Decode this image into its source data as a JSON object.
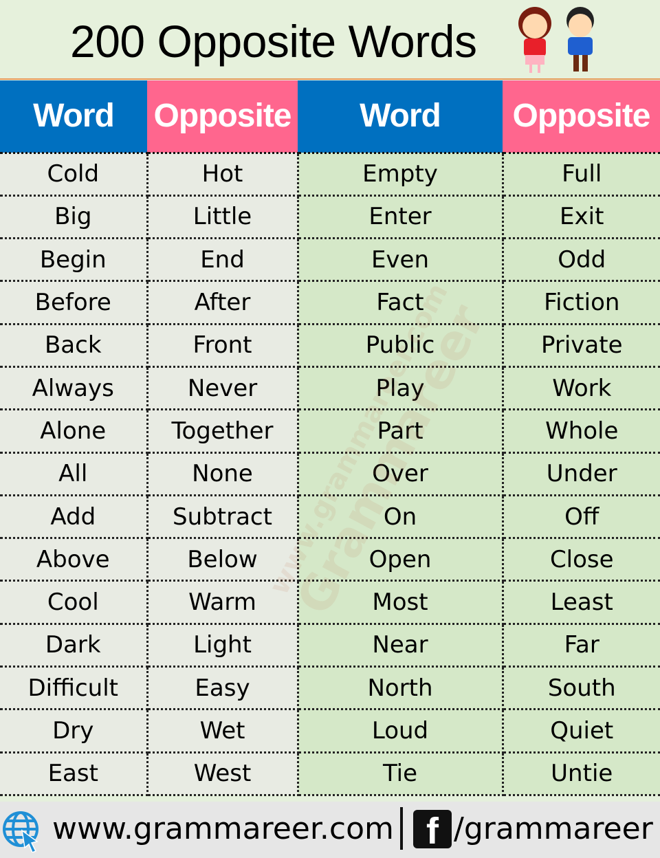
{
  "title": "200 Opposite Words",
  "headers": [
    "Word",
    "Opposite",
    "Word",
    "Opposite"
  ],
  "rows": [
    [
      "Cold",
      "Hot",
      "Empty",
      "Full"
    ],
    [
      "Big",
      "Little",
      "Enter",
      "Exit"
    ],
    [
      "Begin",
      "End",
      "Even",
      "Odd"
    ],
    [
      "Before",
      "After",
      "Fact",
      "Fiction"
    ],
    [
      "Back",
      "Front",
      "Public",
      "Private"
    ],
    [
      "Always",
      "Never",
      "Play",
      "Work"
    ],
    [
      "Alone",
      "Together",
      "Part",
      "Whole"
    ],
    [
      "All",
      "None",
      "Over",
      "Under"
    ],
    [
      "Add",
      "Subtract",
      "On",
      "Off"
    ],
    [
      "Above",
      "Below",
      "Open",
      "Close"
    ],
    [
      "Cool",
      "Warm",
      "Most",
      "Least"
    ],
    [
      "Dark",
      "Light",
      "Near",
      "Far"
    ],
    [
      "Difficult",
      "Easy",
      "North",
      "South"
    ],
    [
      "Dry",
      "Wet",
      "Loud",
      "Quiet"
    ],
    [
      "East",
      "West",
      "Tie",
      "Untie"
    ]
  ],
  "watermark": {
    "line1": "www.grammareer.com",
    "line2": "Grammareer"
  },
  "footer": {
    "website": "www.grammareer.com",
    "facebook_letter": "f",
    "facebook_handle": "/grammareer"
  },
  "colors": {
    "word_header": "#0070c0",
    "opposite_header": "#ff668e",
    "left_cells": "#e8ebe3",
    "right_cells": "#d5e8c8"
  },
  "icons": [
    "kids-illustration",
    "globe-cursor-icon",
    "facebook-icon"
  ]
}
